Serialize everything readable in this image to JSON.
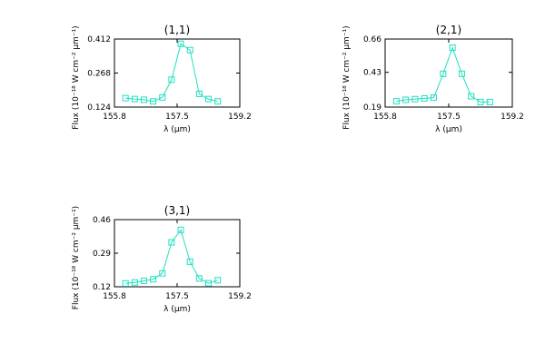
{
  "chart_data": [
    {
      "type": "line",
      "title": "(1,1)",
      "xlabel": "λ (μm)",
      "ylabel": "Flux (10⁻¹⁸ W cm⁻² μm⁻¹)",
      "xlim": [
        155.8,
        159.2
      ],
      "ylim": [
        0.124,
        0.412
      ],
      "xticks": [
        "155.8",
        "157.5",
        "159.2"
      ],
      "yticks": [
        "0.124",
        "0.268",
        "0.412"
      ],
      "series": [
        {
          "x": [
            156.1,
            156.35,
            156.6,
            156.85,
            157.1,
            157.35,
            157.6,
            157.85,
            158.1,
            158.35,
            158.6
          ],
          "y": [
            0.162,
            0.158,
            0.155,
            0.148,
            0.165,
            0.24,
            0.392,
            0.365,
            0.18,
            0.158,
            0.148
          ],
          "color": "#1fe0c0",
          "marker": "square"
        }
      ]
    },
    {
      "type": "line",
      "title": "(2,1)",
      "xlabel": "λ (μm)",
      "ylabel": "Flux (10⁻¹⁸ W cm⁻² μm⁻¹)",
      "xlim": [
        155.8,
        159.2
      ],
      "ylim": [
        0.19,
        0.66
      ],
      "xticks": [
        "155.8",
        "157.5",
        "159.2"
      ],
      "yticks": [
        "0.19",
        "0.43",
        "0.66"
      ],
      "series": [
        {
          "x": [
            156.1,
            156.35,
            156.6,
            156.85,
            157.1,
            157.35,
            157.6,
            157.85,
            158.1,
            158.35,
            158.6
          ],
          "y": [
            0.23,
            0.24,
            0.245,
            0.25,
            0.255,
            0.42,
            0.6,
            0.42,
            0.265,
            0.225,
            0.225
          ],
          "color": "#1fe0c0",
          "marker": "square"
        }
      ]
    },
    {
      "type": "line",
      "title": "(3,1)",
      "xlabel": "λ (μm)",
      "ylabel": "Flux (10⁻¹⁸ W cm⁻² μm⁻¹)",
      "xlim": [
        155.8,
        159.2
      ],
      "ylim": [
        0.12,
        0.46
      ],
      "xticks": [
        "155.8",
        "157.5",
        "159.2"
      ],
      "yticks": [
        "0.12",
        "0.29",
        "0.46"
      ],
      "series": [
        {
          "x": [
            156.1,
            156.35,
            156.6,
            156.85,
            157.1,
            157.35,
            157.6,
            157.85,
            158.1,
            158.35,
            158.6
          ],
          "y": [
            0.137,
            0.142,
            0.15,
            0.158,
            0.188,
            0.345,
            0.408,
            0.247,
            0.162,
            0.138,
            0.153
          ],
          "color": "#1fe0c0",
          "marker": "square"
        }
      ]
    }
  ]
}
